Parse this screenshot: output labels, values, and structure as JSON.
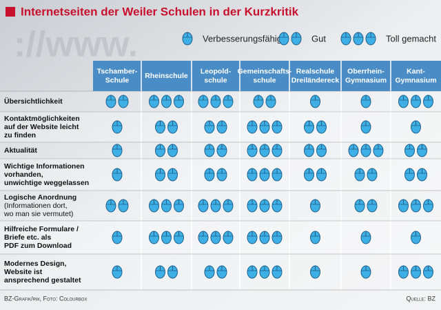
{
  "title": "Internetseiten der Weiler Schulen in der Kurzkritik",
  "legend": [
    {
      "count": 1,
      "label": "Verbesserungsfähig"
    },
    {
      "count": 2,
      "label": "Gut"
    },
    {
      "count": 3,
      "label": "Toll gemacht"
    }
  ],
  "columns": [
    [
      "Tschamber-",
      "Schule"
    ],
    [
      "Rheinschule"
    ],
    [
      "Leopold-",
      "schule"
    ],
    [
      "Gemeinschafts-",
      "schule"
    ],
    [
      "Realschule",
      "Dreiländereck"
    ],
    [
      "Oberrhein-",
      "Gymnasium"
    ],
    [
      "Kant-",
      "Gymnasium"
    ]
  ],
  "rows": [
    {
      "label": [
        "Übersichtlichkeit"
      ],
      "note": [],
      "counts": [
        2,
        3,
        3,
        2,
        1,
        1,
        3
      ]
    },
    {
      "label": [
        "Kontaktmöglichkeiten",
        "auf der Website leicht",
        "zu finden"
      ],
      "note": [],
      "counts": [
        1,
        2,
        2,
        3,
        2,
        1,
        1
      ]
    },
    {
      "label": [
        "Aktualität"
      ],
      "note": [],
      "counts": [
        1,
        2,
        2,
        3,
        2,
        3,
        2
      ]
    },
    {
      "label": [
        "Wichtige Informationen",
        "vorhanden,",
        "unwichtige weggelassen"
      ],
      "note": [],
      "counts": [
        1,
        2,
        2,
        3,
        2,
        2,
        2
      ]
    },
    {
      "label": [
        "Logische Anordnung"
      ],
      "note": [
        "(Informationen dort,",
        "wo man sie vermutet)"
      ],
      "counts": [
        2,
        3,
        3,
        3,
        1,
        2,
        3
      ]
    },
    {
      "label": [
        "Hilfreiche Formulare /",
        "Briefe etc. als",
        "PDF zum Download"
      ],
      "note": [],
      "counts": [
        1,
        3,
        3,
        3,
        1,
        1,
        1
      ]
    },
    {
      "label": [
        "Modernes Design,",
        "Website ist",
        "ansprechend gestaltet"
      ],
      "note": [],
      "counts": [
        1,
        2,
        2,
        3,
        1,
        1,
        3
      ]
    }
  ],
  "footer": {
    "credit": "BZ-Grafik/rw, Foto: Colourbox",
    "source": "Quelle: BZ"
  }
}
